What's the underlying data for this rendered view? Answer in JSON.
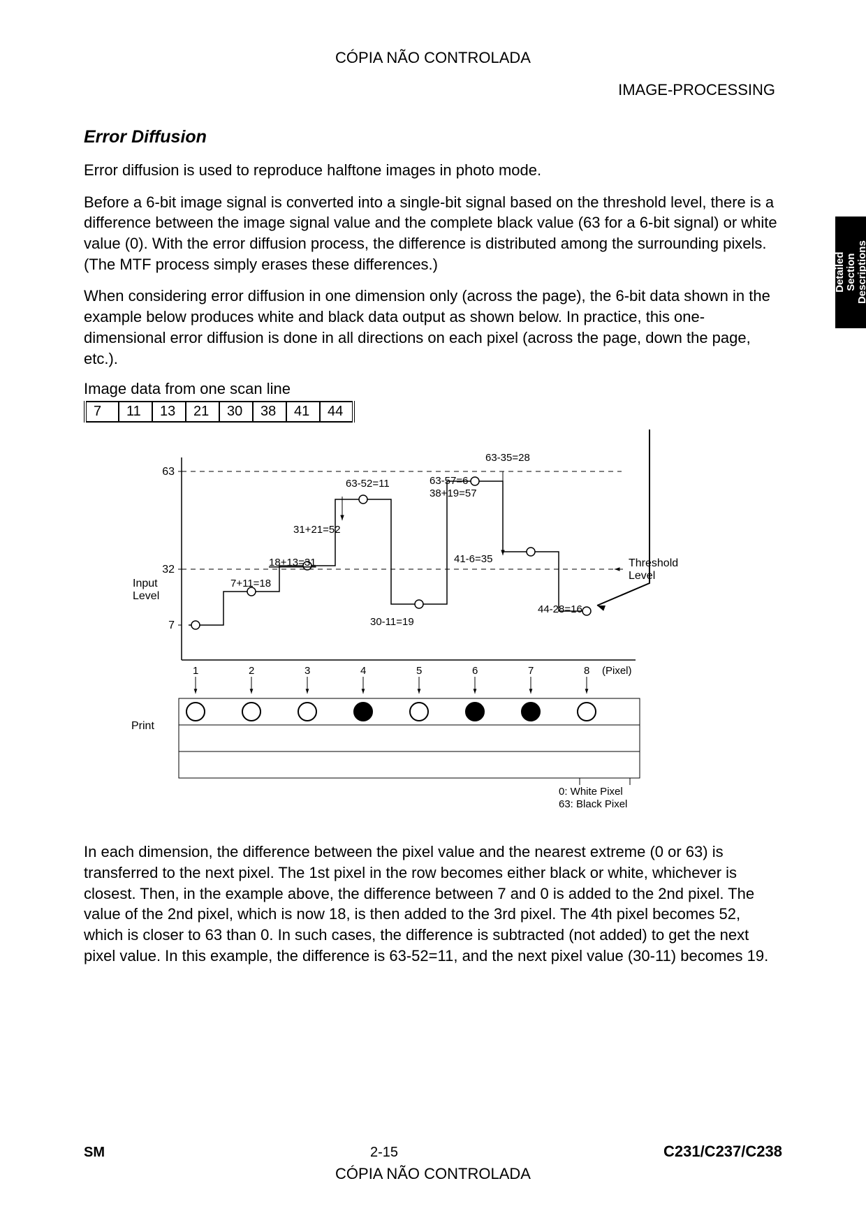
{
  "header": {
    "top": "CÓPIA NÃO CONTROLADA",
    "right": "IMAGE-PROCESSING"
  },
  "sideTab": {
    "line1": "Detailed",
    "line2": "Section",
    "line3": "Descriptions"
  },
  "section": {
    "title": "Error Diffusion",
    "p1": "Error diffusion is used to reproduce halftone images in photo mode.",
    "p2": "Before a 6-bit image signal is converted into a single-bit signal based on the threshold level, there is a difference between the image signal value and the complete black value (63 for a 6-bit signal) or white value (0). With the error diffusion process, the difference is distributed among the surrounding pixels. (The MTF process simply erases these differences.)",
    "p3": "When considering error diffusion in one dimension only (across the page), the 6-bit data shown in the example below produces white and black data output as shown below. In practice, this one-dimensional error diffusion is done in all directions on each pixel (across the page, down the page, etc.).",
    "scanCaption": "Image data from one scan line",
    "scanData": [
      "7",
      "11",
      "13",
      "21",
      "30",
      "38",
      "41",
      "44"
    ],
    "p4": "In each dimension, the difference between the pixel value and the nearest extreme (0 or 63) is transferred to the next pixel. The 1st pixel in the row becomes either black or white, whichever is closest. Then, in the example above, the difference between 7 and 0 is added to the 2nd pixel. The value of the 2nd pixel, which is now 18, is then added to the 3rd pixel. The 4th pixel becomes 52, which is closer to 63 than 0. In such cases, the difference is subtracted (not added) to get the next pixel value. In this example, the difference is 63-52=11, and the next pixel value (30-11) becomes 19."
  },
  "diagram": {
    "inputLabel": "Input\nLevel",
    "printLabel": "Print",
    "thresholdLabel": "Threshold\nLevel",
    "pixelLabel": "(Pixel)",
    "legend1": "0: White Pixel",
    "legend2": "63: Black Pixel",
    "yticks": [
      {
        "y": 60,
        "label": "63"
      },
      {
        "y": 200,
        "label": "32"
      },
      {
        "y": 280,
        "label": "7"
      }
    ],
    "annotations": {
      "a1": "63-35=28",
      "a2": "63-52=11",
      "a3": "63-57=6",
      "a4": "38+19=57",
      "a5": "31+21=52",
      "a6": "18+13=31",
      "a7": "7+11=18",
      "a8": "41-6=35",
      "a9": "30-11=19",
      "a10": "44-28=16"
    },
    "points": [
      {
        "x": 120,
        "y": 280,
        "v": 7
      },
      {
        "x": 200,
        "y": 232,
        "v": 18
      },
      {
        "x": 280,
        "y": 195,
        "v": 31
      },
      {
        "x": 360,
        "y": 100,
        "v": 52
      },
      {
        "x": 440,
        "y": 250,
        "v": 19
      },
      {
        "x": 520,
        "y": 74,
        "v": 57
      },
      {
        "x": 600,
        "y": 175,
        "v": 35
      },
      {
        "x": 680,
        "y": 260,
        "v": 16
      }
    ],
    "thresholdY": 200,
    "maxY": 60,
    "pixelNumbers": [
      "1",
      "2",
      "3",
      "4",
      "5",
      "6",
      "7",
      "8"
    ],
    "pixelFilled": [
      false,
      false,
      false,
      true,
      false,
      true,
      true,
      false
    ]
  },
  "footer": {
    "sm": "SM",
    "page": "2-15",
    "model": "C231/C237/C238",
    "bottom": "CÓPIA NÃO CONTROLADA"
  }
}
